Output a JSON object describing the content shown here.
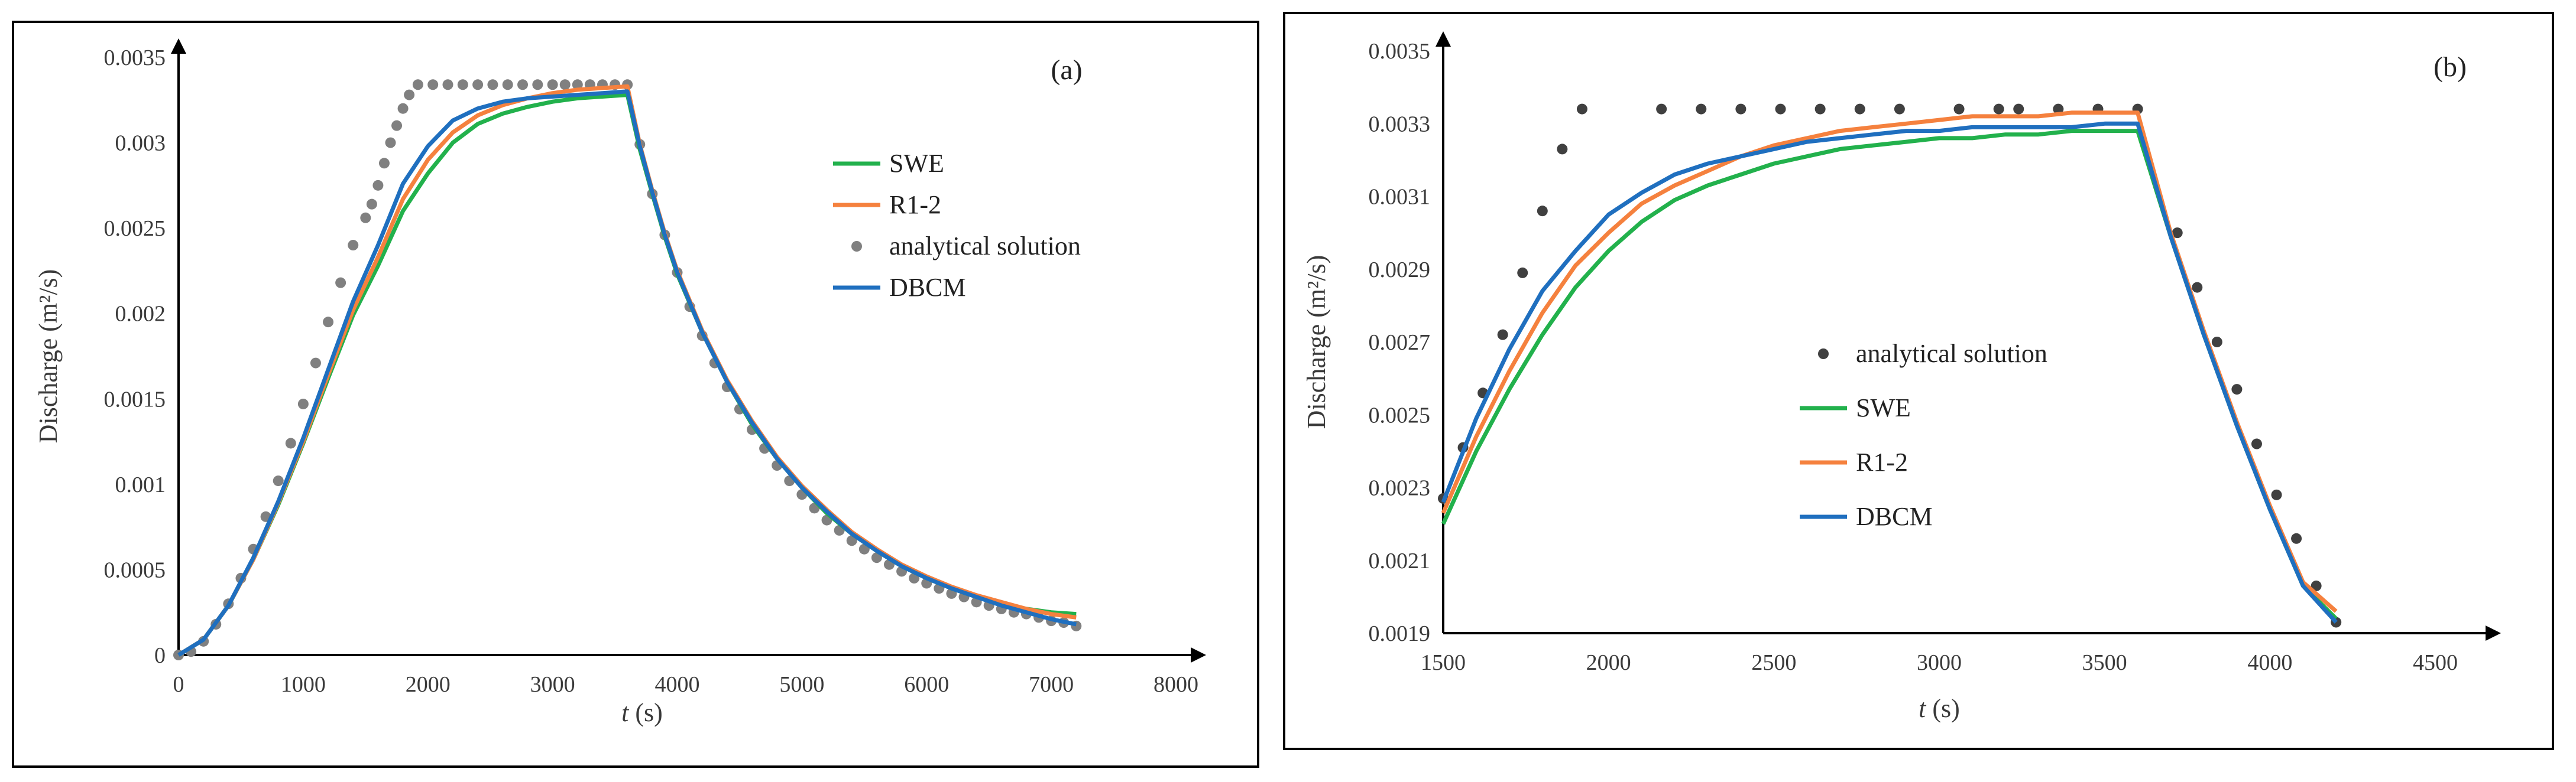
{
  "chart_data": [
    {
      "type": "line",
      "panel_label": "(a)",
      "xlabel_italic": "t",
      "xlabel_unit": "(s)",
      "ylabel": "Discharge (m²/s)",
      "xlim": [
        0,
        8000
      ],
      "ylim": [
        0,
        0.0035
      ],
      "xticks": [
        0,
        1000,
        2000,
        3000,
        4000,
        5000,
        6000,
        7000,
        8000
      ],
      "yticks": [
        0,
        0.0005,
        0.001,
        0.0015,
        0.002,
        0.0025,
        0.003,
        0.0035
      ],
      "ytick_labels": [
        "0",
        "0.0005",
        "0.001",
        "0.0015",
        "0.002",
        "0.0025",
        "0.003",
        "0.0035"
      ],
      "legend_position": "right",
      "legend_order": [
        "SWE",
        "R1-2",
        "analytical solution",
        "DBCM"
      ],
      "series": [
        {
          "name": "SWE",
          "style": "line",
          "color": "#22b14c",
          "x": [
            0,
            200,
            400,
            600,
            800,
            1000,
            1200,
            1400,
            1600,
            1800,
            2000,
            2200,
            2400,
            2600,
            2800,
            3000,
            3200,
            3400,
            3600,
            3700,
            3800,
            3900,
            4000,
            4200,
            4400,
            4600,
            4800,
            5000,
            5200,
            5400,
            5600,
            5800,
            6000,
            6200,
            6400,
            6600,
            6800,
            7000,
            7200
          ],
          "y": [
            0,
            9e-05,
            0.00029,
            0.00056,
            0.00088,
            0.00124,
            0.00162,
            0.00199,
            0.00228,
            0.0026,
            0.00282,
            0.003,
            0.00311,
            0.00317,
            0.00321,
            0.00324,
            0.00326,
            0.00327,
            0.00328,
            0.00296,
            0.0027,
            0.00245,
            0.00223,
            0.00189,
            0.0016,
            0.00135,
            0.00115,
            0.00098,
            0.00083,
            0.00071,
            0.00061,
            0.00052,
            0.00045,
            0.00039,
            0.00034,
            0.0003,
            0.00027,
            0.00025,
            0.00024
          ]
        },
        {
          "name": "R1-2",
          "style": "line",
          "color": "#f5813e",
          "x": [
            0,
            200,
            400,
            600,
            800,
            1000,
            1200,
            1400,
            1600,
            1800,
            2000,
            2200,
            2400,
            2600,
            2800,
            3000,
            3200,
            3400,
            3600,
            3700,
            3800,
            3900,
            4000,
            4200,
            4400,
            4600,
            4800,
            5000,
            5200,
            5400,
            5600,
            5800,
            6000,
            6200,
            6400,
            6600,
            6800,
            7000,
            7200
          ],
          "y": [
            0,
            9e-05,
            0.00029,
            0.00056,
            0.00089,
            0.00125,
            0.00164,
            0.00202,
            0.00233,
            0.00267,
            0.0029,
            0.00306,
            0.00316,
            0.00322,
            0.00326,
            0.00329,
            0.00331,
            0.00332,
            0.00333,
            0.00299,
            0.00272,
            0.00247,
            0.00225,
            0.0019,
            0.00161,
            0.00137,
            0.00116,
            0.00099,
            0.00085,
            0.00072,
            0.00062,
            0.00053,
            0.00046,
            0.0004,
            0.00035,
            0.00031,
            0.00027,
            0.00024,
            0.00022
          ]
        },
        {
          "name": "analytical solution",
          "style": "dots",
          "color": "#808080",
          "x": [
            0,
            100,
            200,
            300,
            400,
            500,
            600,
            700,
            800,
            900,
            1000,
            1100,
            1200,
            1300,
            1400,
            1500,
            1550,
            1600,
            1650,
            1700,
            1750,
            1800,
            1850,
            1920,
            2040,
            2160,
            2280,
            2400,
            2520,
            2640,
            2760,
            2880,
            3000,
            3100,
            3200,
            3300,
            3400,
            3500,
            3600,
            3700,
            3800,
            3900,
            4000,
            4100,
            4200,
            4300,
            4400,
            4500,
            4600,
            4700,
            4800,
            4900,
            5000,
            5100,
            5200,
            5300,
            5400,
            5500,
            5600,
            5700,
            5800,
            5900,
            6000,
            6100,
            6200,
            6300,
            6400,
            6500,
            6600,
            6700,
            6800,
            6900,
            7000,
            7100,
            7200
          ],
          "y": [
            0,
            2e-05,
            8e-05,
            0.00018,
            0.0003,
            0.00045,
            0.00062,
            0.00081,
            0.00102,
            0.00124,
            0.00147,
            0.00171,
            0.00195,
            0.00218,
            0.0024,
            0.00256,
            0.00264,
            0.00275,
            0.00288,
            0.003,
            0.0031,
            0.0032,
            0.00328,
            0.00334,
            0.00334,
            0.00334,
            0.00334,
            0.00334,
            0.00334,
            0.00334,
            0.00334,
            0.00334,
            0.00334,
            0.00334,
            0.00334,
            0.00334,
            0.00334,
            0.00334,
            0.00334,
            0.00299,
            0.0027,
            0.00246,
            0.00224,
            0.00204,
            0.00187,
            0.00171,
            0.00157,
            0.00144,
            0.00132,
            0.00121,
            0.00111,
            0.00102,
            0.00094,
            0.00086,
            0.00079,
            0.00073,
            0.00067,
            0.00062,
            0.00057,
            0.00053,
            0.00049,
            0.00045,
            0.00042,
            0.00039,
            0.00036,
            0.00034,
            0.00031,
            0.00029,
            0.00027,
            0.00025,
            0.00024,
            0.00022,
            0.0002,
            0.00019,
            0.00017
          ]
        },
        {
          "name": "DBCM",
          "style": "line",
          "color": "#1f6fbf",
          "x": [
            0,
            200,
            400,
            600,
            800,
            1000,
            1200,
            1400,
            1600,
            1800,
            2000,
            2200,
            2400,
            2600,
            2800,
            3000,
            3200,
            3400,
            3600,
            3700,
            3800,
            3900,
            4000,
            4200,
            4400,
            4600,
            4800,
            5000,
            5200,
            5400,
            5600,
            5800,
            6000,
            6200,
            6400,
            6600,
            6800,
            7000,
            7200
          ],
          "y": [
            0,
            9e-05,
            0.00029,
            0.00057,
            0.0009,
            0.00127,
            0.00167,
            0.00207,
            0.0024,
            0.00276,
            0.00298,
            0.00313,
            0.0032,
            0.00324,
            0.00326,
            0.00327,
            0.00328,
            0.00329,
            0.0033,
            0.00298,
            0.00271,
            0.00246,
            0.00224,
            0.00189,
            0.0016,
            0.00136,
            0.00115,
            0.00098,
            0.00084,
            0.00071,
            0.00061,
            0.00052,
            0.00045,
            0.00039,
            0.00034,
            0.00029,
            0.00025,
            0.00021,
            0.00018
          ]
        }
      ]
    },
    {
      "type": "line",
      "panel_label": "(b)",
      "xlabel_italic": "t",
      "xlabel_unit": "(s)",
      "ylabel": "Discharge (m²/s)",
      "xlim": [
        1500,
        4500
      ],
      "ylim": [
        0.0019,
        0.0035
      ],
      "xticks": [
        1500,
        2000,
        2500,
        3000,
        3500,
        4000,
        4500
      ],
      "yticks": [
        0.0019,
        0.0021,
        0.0023,
        0.0025,
        0.0027,
        0.0029,
        0.0031,
        0.0033,
        0.0035
      ],
      "ytick_labels": [
        "0.0019",
        "0.0021",
        "0.0023",
        "0.0025",
        "0.0027",
        "0.0029",
        "0.0031",
        "0.0033",
        "0.0035"
      ],
      "legend_position": "center",
      "legend_order": [
        "analytical solution",
        "SWE",
        "R1-2",
        "DBCM"
      ],
      "series": [
        {
          "name": "analytical solution",
          "style": "dots",
          "color": "#404040",
          "x": [
            1500,
            1560,
            1620,
            1680,
            1740,
            1800,
            1860,
            1920,
            2160,
            2280,
            2400,
            2520,
            2640,
            2760,
            2880,
            3060,
            3180,
            3240,
            3360,
            3480,
            3600,
            3720,
            3780,
            3840,
            3900,
            3960,
            4020,
            4080,
            4140,
            4200
          ],
          "y": [
            0.00227,
            0.00241,
            0.00256,
            0.00272,
            0.00289,
            0.00306,
            0.00323,
            0.00334,
            0.00334,
            0.00334,
            0.00334,
            0.00334,
            0.00334,
            0.00334,
            0.00334,
            0.00334,
            0.00334,
            0.00334,
            0.00334,
            0.00334,
            0.00334,
            0.003,
            0.00285,
            0.0027,
            0.00257,
            0.00242,
            0.00228,
            0.00216,
            0.00203,
            0.00193
          ]
        },
        {
          "name": "SWE",
          "style": "line",
          "color": "#22b14c",
          "x": [
            1500,
            1600,
            1700,
            1800,
            1900,
            2000,
            2100,
            2200,
            2300,
            2400,
            2500,
            2600,
            2700,
            2800,
            2900,
            3000,
            3100,
            3200,
            3300,
            3400,
            3500,
            3600,
            3700,
            3800,
            3900,
            4000,
            4100,
            4200
          ],
          "y": [
            0.0022,
            0.0024,
            0.00257,
            0.00272,
            0.00285,
            0.00295,
            0.00303,
            0.00309,
            0.00313,
            0.00316,
            0.00319,
            0.00321,
            0.00323,
            0.00324,
            0.00325,
            0.00326,
            0.00326,
            0.00327,
            0.00327,
            0.00328,
            0.00328,
            0.00328,
            0.00299,
            0.00272,
            0.00247,
            0.00224,
            0.00203,
            0.00194
          ]
        },
        {
          "name": "R1-2",
          "style": "line",
          "color": "#f5813e",
          "x": [
            1500,
            1600,
            1700,
            1800,
            1900,
            2000,
            2100,
            2200,
            2300,
            2400,
            2500,
            2600,
            2700,
            2800,
            2900,
            3000,
            3100,
            3200,
            3300,
            3400,
            3500,
            3600,
            3700,
            3800,
            3900,
            4000,
            4100,
            4200
          ],
          "y": [
            0.00223,
            0.00244,
            0.00262,
            0.00278,
            0.00291,
            0.003,
            0.00308,
            0.00313,
            0.00317,
            0.00321,
            0.00324,
            0.00326,
            0.00328,
            0.00329,
            0.0033,
            0.00331,
            0.00332,
            0.00332,
            0.00332,
            0.00333,
            0.00333,
            0.00333,
            0.003,
            0.00273,
            0.00248,
            0.00225,
            0.00204,
            0.00196
          ]
        },
        {
          "name": "DBCM",
          "style": "line",
          "color": "#1f6fbf",
          "x": [
            1500,
            1600,
            1700,
            1800,
            1900,
            2000,
            2100,
            2200,
            2300,
            2400,
            2500,
            2600,
            2700,
            2800,
            2900,
            3000,
            3100,
            3200,
            3300,
            3400,
            3500,
            3600,
            3700,
            3800,
            3900,
            4000,
            4100,
            4200
          ],
          "y": [
            0.00226,
            0.00249,
            0.00268,
            0.00284,
            0.00295,
            0.00305,
            0.00311,
            0.00316,
            0.00319,
            0.00321,
            0.00323,
            0.00325,
            0.00326,
            0.00327,
            0.00328,
            0.00328,
            0.00329,
            0.00329,
            0.00329,
            0.00329,
            0.0033,
            0.0033,
            0.00299,
            0.00272,
            0.00247,
            0.00224,
            0.00203,
            0.00193
          ]
        }
      ]
    }
  ]
}
